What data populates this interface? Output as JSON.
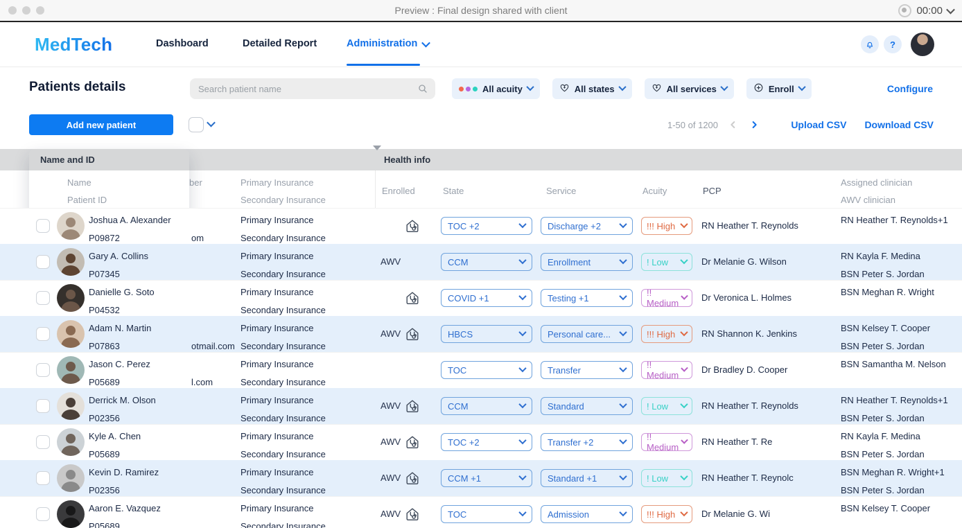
{
  "window": {
    "title": "Preview : Final design shared with client",
    "timer": "00:00"
  },
  "nav": {
    "logo": "MedTech",
    "items": [
      {
        "label": "Dashboard"
      },
      {
        "label": "Detailed Report"
      },
      {
        "label": "Administration",
        "active": true
      }
    ],
    "help_label": "?"
  },
  "toolbar": {
    "page_title": "Patients details",
    "search_placeholder": "Search patient name",
    "filters": [
      {
        "label": "All acuity",
        "icon": "acuity-dots-icon"
      },
      {
        "label": "All states",
        "icon": "heart-plus-icon"
      },
      {
        "label": "All services",
        "icon": "heart-plus-icon"
      },
      {
        "label": "Enroll",
        "icon": "circle-plus-icon"
      }
    ],
    "configure_label": "Configure",
    "add_button_label": "Add new patient",
    "pagination": "1-50 of 1200",
    "upload_label": "Upload CSV",
    "download_label": "Download CSV"
  },
  "colors": {
    "brand_blue": "#1270e8",
    "row_alt": "#e4effb",
    "acuity_dots": [
      "#f2694e",
      "#b866e0",
      "#2cd3c0"
    ],
    "acuity_levels": {
      "high": {
        "color": "#df6a43",
        "border": "#e59a7c"
      },
      "medium": {
        "color": "#b75fc6",
        "border": "#cf97da"
      },
      "low": {
        "color": "#38d1c6",
        "border": "#8ce2db"
      }
    }
  },
  "table": {
    "drag_card": {
      "title": "Name and ID",
      "sub_columns": [
        "Name",
        "Patient ID"
      ]
    },
    "group_header": "Health info",
    "hidden_column_tail": "ber",
    "headers": {
      "insurance": [
        "Primary Insurance",
        "Secondary Insurance"
      ],
      "enrolled": "Enrolled",
      "state": "State",
      "service": "Service",
      "acuity": "Acuity",
      "pcp": "PCP",
      "clinician": [
        "Assigned clinician",
        "AWV clinician"
      ]
    },
    "row_insurance": [
      "Primary Insurance",
      "Secondary Insurance"
    ],
    "awv_label": "AWV"
  },
  "rows": [
    {
      "name": "Joshua A. Alexander",
      "id": "P09872",
      "email_tail": "om",
      "awv": false,
      "home_icon": true,
      "state": "TOC +2",
      "service": "Discharge +2",
      "acuity": {
        "label": "!!! High",
        "level": "high"
      },
      "pcp": "RN Heather T. Reynolds",
      "clinicians": [
        "RN Heather T. Reynolds+1"
      ],
      "avatar": {
        "bg": "#ded6cb",
        "fg": "#9c8877"
      }
    },
    {
      "name": "Gary A. Collins",
      "id": "P07345",
      "email_tail": "",
      "awv": true,
      "home_icon": false,
      "state": "CCM",
      "service": "Enrollment",
      "acuity": {
        "label": "! Low",
        "level": "low"
      },
      "pcp": "Dr Melanie G. Wilson",
      "clinicians": [
        "RN Kayla F. Medina",
        "BSN Peter S. Jordan"
      ],
      "avatar": {
        "bg": "#c2bcb3",
        "fg": "#5d4432"
      }
    },
    {
      "name": "Danielle G. Soto",
      "id": "P04532",
      "email_tail": "",
      "awv": false,
      "home_icon": true,
      "state": "COVID +1",
      "service": "Testing +1",
      "acuity": {
        "label": "!! Medium",
        "level": "medium"
      },
      "pcp": "Dr Veronica L. Holmes",
      "clinicians": [
        "BSN Meghan R. Wright"
      ],
      "avatar": {
        "bg": "#35302c",
        "fg": "#6b5648"
      }
    },
    {
      "name": "Adam N. Martin",
      "id": "P07863",
      "email_tail": "otmail.com",
      "awv": true,
      "home_icon": true,
      "state": "HBCS",
      "service": "Personal care...",
      "acuity": {
        "label": "!!! High",
        "level": "high"
      },
      "pcp": "RN Shannon K. Jenkins",
      "clinicians": [
        "BSN Kelsey T. Cooper",
        "BSN Peter S. Jordan"
      ],
      "avatar": {
        "bg": "#d9c3ae",
        "fg": "#8a6a52"
      }
    },
    {
      "name": "Jason C. Perez",
      "id": "P05689",
      "email_tail": "l.com",
      "awv": false,
      "home_icon": false,
      "state": "TOC",
      "service": "Transfer",
      "acuity": {
        "label": "!! Medium",
        "level": "medium"
      },
      "pcp": "Dr Bradley D. Cooper",
      "clinicians": [
        "BSN Samantha M. Nelson"
      ],
      "avatar": {
        "bg": "#9fb8b5",
        "fg": "#6d5a4c"
      }
    },
    {
      "name": "Derrick M. Olson",
      "id": "P02356",
      "email_tail": "",
      "awv": true,
      "home_icon": true,
      "state": "CCM",
      "service": "Standard",
      "acuity": {
        "label": "! Low",
        "level": "low"
      },
      "pcp": "RN Heather T. Reynolds",
      "clinicians": [
        "RN Heather T. Reynolds+1",
        "BSN Peter S. Jordan"
      ],
      "avatar": {
        "bg": "#e4e0da",
        "fg": "#4a3f38"
      }
    },
    {
      "name": "Kyle A. Chen",
      "id": "P05689",
      "email_tail": "",
      "awv": true,
      "home_icon": true,
      "state": "TOC +2",
      "service": "Transfer +2",
      "acuity": {
        "label": "!! Medium",
        "level": "medium"
      },
      "pcp": "RN Heather T. Re",
      "clinicians": [
        "RN Kayla F. Medina",
        "BSN Peter S. Jordan"
      ],
      "avatar": {
        "bg": "#ccd2d6",
        "fg": "#70655c"
      }
    },
    {
      "name": "Kevin D. Ramirez",
      "id": "P02356",
      "email_tail": "",
      "awv": true,
      "home_icon": true,
      "state": "CCM +1",
      "service": "Standard +1",
      "acuity": {
        "label": "! Low",
        "level": "low"
      },
      "pcp": "RN Heather T. Reynolc",
      "clinicians": [
        "BSN Meghan R. Wright+1",
        "BSN Peter S. Jordan"
      ],
      "avatar": {
        "bg": "#c9c9c9",
        "fg": "#8a8a8a"
      }
    },
    {
      "name": "Aaron E. Vazquez",
      "id": "P05689",
      "email_tail": "",
      "awv": true,
      "home_icon": true,
      "state": "TOC",
      "service": "Admission",
      "acuity": {
        "label": "!!! High",
        "level": "high"
      },
      "pcp": "Dr Melanie G. Wi",
      "clinicians": [
        "BSN Kelsey T. Cooper"
      ],
      "avatar": {
        "bg": "#3a3a3c",
        "fg": "#181819"
      }
    }
  ]
}
